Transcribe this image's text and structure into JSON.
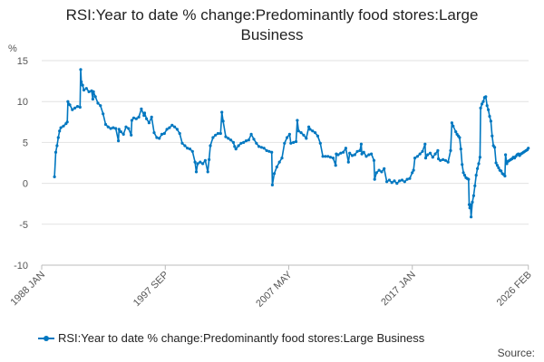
{
  "chart_data": {
    "type": "line",
    "title_line1": "RSI:Year to date % change:Predominantly food stores:Large",
    "title_line2": "Business",
    "ylabel": "%",
    "ylim": [
      -10,
      15
    ],
    "yticks": [
      -10,
      -5,
      0,
      5,
      10,
      15
    ],
    "xlim": [
      1988.0,
      2026.1
    ],
    "xticks": [
      {
        "label": "1988 JAN",
        "value": 1988.0
      },
      {
        "label": "1997 SEP",
        "value": 1997.67
      },
      {
        "label": "2007 MAY",
        "value": 2007.33
      },
      {
        "label": "2017 JAN",
        "value": 2017.0
      },
      {
        "label": "2026 FEB",
        "value": 2026.08
      }
    ],
    "grid": true,
    "legend_position": "bottom-left",
    "series": [
      {
        "name": "RSI:Year to date % change:Predominantly food stores:Large Business",
        "color": "#0077c0",
        "points": [
          [
            1989.0,
            0.8
          ],
          [
            1989.1,
            3.8
          ],
          [
            1989.2,
            4.6
          ],
          [
            1989.3,
            5.6
          ],
          [
            1989.4,
            6.4
          ],
          [
            1989.5,
            6.8
          ],
          [
            1989.7,
            7.0
          ],
          [
            1989.9,
            7.3
          ],
          [
            1990.0,
            7.5
          ],
          [
            1990.05,
            10.0
          ],
          [
            1990.2,
            9.6
          ],
          [
            1990.4,
            9.0
          ],
          [
            1990.6,
            9.2
          ],
          [
            1990.8,
            9.4
          ],
          [
            1991.0,
            9.3
          ],
          [
            1991.05,
            13.9
          ],
          [
            1991.1,
            12.4
          ],
          [
            1991.2,
            12.0
          ],
          [
            1991.3,
            11.4
          ],
          [
            1991.5,
            11.6
          ],
          [
            1991.7,
            11.2
          ],
          [
            1991.9,
            11.3
          ],
          [
            1992.0,
            10.3
          ],
          [
            1992.05,
            11.2
          ],
          [
            1992.2,
            10.6
          ],
          [
            1992.4,
            9.8
          ],
          [
            1992.6,
            9.5
          ],
          [
            1992.8,
            8.5
          ],
          [
            1993.0,
            7.2
          ],
          [
            1993.2,
            6.9
          ],
          [
            1993.4,
            6.7
          ],
          [
            1993.6,
            6.8
          ],
          [
            1993.8,
            6.7
          ],
          [
            1994.0,
            5.2
          ],
          [
            1994.05,
            6.6
          ],
          [
            1994.2,
            6.3
          ],
          [
            1994.4,
            6.0
          ],
          [
            1994.6,
            6.9
          ],
          [
            1994.8,
            6.7
          ],
          [
            1995.0,
            5.9
          ],
          [
            1995.05,
            7.7
          ],
          [
            1995.2,
            8.0
          ],
          [
            1995.4,
            7.9
          ],
          [
            1995.6,
            8.1
          ],
          [
            1995.8,
            9.1
          ],
          [
            1996.0,
            8.3
          ],
          [
            1996.05,
            8.6
          ],
          [
            1996.2,
            7.9
          ],
          [
            1996.4,
            7.4
          ],
          [
            1996.6,
            8.1
          ],
          [
            1996.8,
            6.2
          ],
          [
            1997.0,
            5.6
          ],
          [
            1997.2,
            5.5
          ],
          [
            1997.4,
            6.0
          ],
          [
            1997.6,
            6.1
          ],
          [
            1997.8,
            6.6
          ],
          [
            1998.0,
            6.8
          ],
          [
            1998.2,
            7.1
          ],
          [
            1998.4,
            6.9
          ],
          [
            1998.6,
            6.6
          ],
          [
            1998.8,
            6.1
          ],
          [
            1999.0,
            4.9
          ],
          [
            1999.2,
            4.6
          ],
          [
            1999.4,
            4.3
          ],
          [
            1999.6,
            4.2
          ],
          [
            1999.8,
            3.9
          ],
          [
            2000.0,
            2.6
          ],
          [
            2000.1,
            1.4
          ],
          [
            2000.2,
            2.4
          ],
          [
            2000.4,
            2.6
          ],
          [
            2000.6,
            2.4
          ],
          [
            2000.8,
            2.8
          ],
          [
            2001.0,
            1.4
          ],
          [
            2001.1,
            2.9
          ],
          [
            2001.2,
            4.6
          ],
          [
            2001.4,
            5.6
          ],
          [
            2001.6,
            5.9
          ],
          [
            2001.8,
            6.1
          ],
          [
            2002.0,
            6.1
          ],
          [
            2002.1,
            8.7
          ],
          [
            2002.2,
            7.6
          ],
          [
            2002.4,
            5.7
          ],
          [
            2002.6,
            5.5
          ],
          [
            2002.8,
            5.3
          ],
          [
            2003.0,
            5.0
          ],
          [
            2003.1,
            4.5
          ],
          [
            2003.2,
            4.2
          ],
          [
            2003.4,
            4.6
          ],
          [
            2003.6,
            4.9
          ],
          [
            2003.8,
            5.0
          ],
          [
            2004.0,
            5.2
          ],
          [
            2004.2,
            5.3
          ],
          [
            2004.4,
            6.0
          ],
          [
            2004.6,
            5.4
          ],
          [
            2004.8,
            4.9
          ],
          [
            2005.0,
            4.5
          ],
          [
            2005.2,
            4.4
          ],
          [
            2005.4,
            4.3
          ],
          [
            2005.6,
            4.0
          ],
          [
            2005.8,
            3.9
          ],
          [
            2006.0,
            3.8
          ],
          [
            2006.05,
            -0.2
          ],
          [
            2006.2,
            1.2
          ],
          [
            2006.4,
            2.0
          ],
          [
            2006.6,
            2.6
          ],
          [
            2006.8,
            3.1
          ],
          [
            2007.0,
            4.9
          ],
          [
            2007.2,
            5.6
          ],
          [
            2007.4,
            6.0
          ],
          [
            2007.5,
            4.9
          ],
          [
            2007.7,
            5.0
          ],
          [
            2007.9,
            5.1
          ],
          [
            2008.0,
            7.7
          ],
          [
            2008.1,
            6.4
          ],
          [
            2008.3,
            6.2
          ],
          [
            2008.5,
            5.9
          ],
          [
            2008.7,
            5.5
          ],
          [
            2008.9,
            6.9
          ],
          [
            2009.0,
            6.6
          ],
          [
            2009.2,
            6.4
          ],
          [
            2009.4,
            6.2
          ],
          [
            2009.6,
            5.8
          ],
          [
            2009.8,
            4.9
          ],
          [
            2010.0,
            3.3
          ],
          [
            2010.2,
            3.3
          ],
          [
            2010.4,
            3.3
          ],
          [
            2010.6,
            3.2
          ],
          [
            2010.8,
            3.1
          ],
          [
            2011.0,
            2.2
          ],
          [
            2011.05,
            3.6
          ],
          [
            2011.2,
            3.5
          ],
          [
            2011.4,
            3.7
          ],
          [
            2011.6,
            3.8
          ],
          [
            2011.8,
            4.3
          ],
          [
            2012.0,
            2.6
          ],
          [
            2012.1,
            3.7
          ],
          [
            2012.3,
            3.4
          ],
          [
            2012.5,
            3.5
          ],
          [
            2012.7,
            3.9
          ],
          [
            2012.9,
            4.0
          ],
          [
            2013.0,
            4.8
          ],
          [
            2013.05,
            3.6
          ],
          [
            2013.2,
            3.8
          ],
          [
            2013.4,
            3.3
          ],
          [
            2013.6,
            3.5
          ],
          [
            2013.8,
            3.6
          ],
          [
            2014.0,
            2.8
          ],
          [
            2014.05,
            0.5
          ],
          [
            2014.2,
            1.3
          ],
          [
            2014.4,
            1.6
          ],
          [
            2014.6,
            1.4
          ],
          [
            2014.8,
            1.8
          ],
          [
            2015.0,
            0.2
          ],
          [
            2015.2,
            0.4
          ],
          [
            2015.4,
            0.1
          ],
          [
            2015.6,
            0.3
          ],
          [
            2015.8,
            0.0
          ],
          [
            2016.0,
            0.3
          ],
          [
            2016.2,
            0.4
          ],
          [
            2016.4,
            0.2
          ],
          [
            2016.6,
            0.5
          ],
          [
            2016.8,
            0.6
          ],
          [
            2017.0,
            1.3
          ],
          [
            2017.1,
            1.6
          ],
          [
            2017.2,
            3.1
          ],
          [
            2017.4,
            3.3
          ],
          [
            2017.6,
            3.6
          ],
          [
            2017.8,
            3.9
          ],
          [
            2018.0,
            4.8
          ],
          [
            2018.05,
            3.1
          ],
          [
            2018.2,
            3.5
          ],
          [
            2018.4,
            3.7
          ],
          [
            2018.6,
            3.2
          ],
          [
            2018.8,
            3.6
          ],
          [
            2019.0,
            4.0
          ],
          [
            2019.05,
            3.0
          ],
          [
            2019.2,
            2.8
          ],
          [
            2019.4,
            2.9
          ],
          [
            2019.6,
            2.8
          ],
          [
            2019.8,
            2.6
          ],
          [
            2020.0,
            4.0
          ],
          [
            2020.1,
            7.4
          ],
          [
            2020.2,
            7.0
          ],
          [
            2020.4,
            6.3
          ],
          [
            2020.5,
            6.0
          ],
          [
            2020.6,
            5.8
          ],
          [
            2020.7,
            5.6
          ],
          [
            2020.8,
            4.2
          ],
          [
            2020.9,
            2.3
          ],
          [
            2021.0,
            1.3
          ],
          [
            2021.1,
            1.0
          ],
          [
            2021.2,
            0.7
          ],
          [
            2021.3,
            0.6
          ],
          [
            2021.4,
            0.5
          ],
          [
            2021.45,
            -2.6
          ],
          [
            2021.5,
            -3.0
          ],
          [
            2021.55,
            -2.6
          ],
          [
            2021.6,
            -4.1
          ],
          [
            2021.7,
            -2.3
          ],
          [
            2021.8,
            -1.5
          ],
          [
            2021.9,
            -0.3
          ],
          [
            2022.0,
            1.0
          ],
          [
            2022.1,
            1.8
          ],
          [
            2022.2,
            2.4
          ],
          [
            2022.3,
            3.2
          ],
          [
            2022.35,
            9.2
          ],
          [
            2022.45,
            9.7
          ],
          [
            2022.55,
            10.0
          ],
          [
            2022.65,
            10.5
          ],
          [
            2022.75,
            10.6
          ],
          [
            2022.85,
            9.5
          ],
          [
            2022.95,
            9.0
          ],
          [
            2023.05,
            8.2
          ],
          [
            2023.15,
            7.6
          ],
          [
            2023.25,
            5.8
          ],
          [
            2023.35,
            4.6
          ],
          [
            2023.45,
            4.4
          ],
          [
            2023.55,
            2.5
          ],
          [
            2023.65,
            2.2
          ],
          [
            2023.75,
            1.9
          ],
          [
            2023.85,
            1.6
          ],
          [
            2023.95,
            1.5
          ],
          [
            2024.05,
            1.2
          ],
          [
            2024.15,
            1.1
          ],
          [
            2024.25,
            0.9
          ],
          [
            2024.3,
            3.5
          ],
          [
            2024.4,
            2.4
          ],
          [
            2024.5,
            2.7
          ],
          [
            2024.6,
            2.8
          ],
          [
            2024.7,
            2.9
          ],
          [
            2024.8,
            3.0
          ],
          [
            2024.9,
            3.2
          ],
          [
            2025.0,
            3.1
          ],
          [
            2025.1,
            3.3
          ],
          [
            2025.2,
            3.5
          ],
          [
            2025.3,
            3.6
          ],
          [
            2025.4,
            3.4
          ],
          [
            2025.5,
            3.6
          ],
          [
            2025.6,
            3.7
          ],
          [
            2025.7,
            3.8
          ],
          [
            2025.8,
            3.9
          ],
          [
            2025.9,
            4.0
          ],
          [
            2026.0,
            4.1
          ],
          [
            2026.08,
            4.3
          ]
        ]
      }
    ]
  },
  "footer": {
    "source_label": "Source:"
  }
}
